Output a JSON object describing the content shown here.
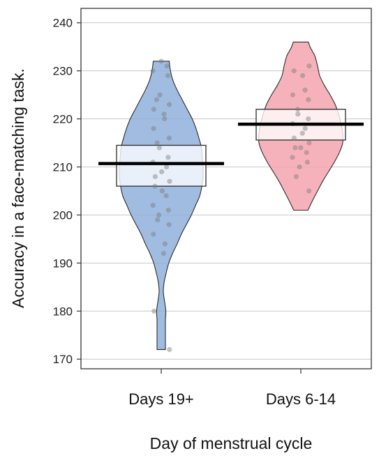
{
  "chart_data": {
    "type": "pirate",
    "xlabel": "Day of menstrual cycle",
    "ylabel": "Accuracy in a face-matching task.",
    "ylim": [
      168,
      243
    ],
    "yticks": [
      170,
      180,
      190,
      200,
      210,
      220,
      230,
      240
    ],
    "grid": true,
    "categories": [
      "Days 19+",
      "Days 6-14"
    ],
    "groups": [
      {
        "category": "Days 19+",
        "color": "#8FB0DC",
        "mean": 210.7,
        "inference_band": [
          206,
          214.5
        ],
        "min": 172,
        "max": 232,
        "density": [
          [
            172,
            0.1
          ],
          [
            174,
            0.1
          ],
          [
            176,
            0.1
          ],
          [
            178,
            0.1
          ],
          [
            180,
            0.11
          ],
          [
            182,
            0.08
          ],
          [
            184,
            0.05
          ],
          [
            186,
            0.07
          ],
          [
            188,
            0.12
          ],
          [
            190,
            0.18
          ],
          [
            192,
            0.27
          ],
          [
            194,
            0.38
          ],
          [
            196,
            0.48
          ],
          [
            198,
            0.6
          ],
          [
            200,
            0.72
          ],
          [
            202,
            0.82
          ],
          [
            204,
            0.92
          ],
          [
            206,
            0.97
          ],
          [
            208,
            1.0
          ],
          [
            210,
            1.0
          ],
          [
            212,
            0.98
          ],
          [
            214,
            0.96
          ],
          [
            216,
            0.9
          ],
          [
            218,
            0.83
          ],
          [
            220,
            0.74
          ],
          [
            222,
            0.62
          ],
          [
            224,
            0.5
          ],
          [
            226,
            0.38
          ],
          [
            228,
            0.28
          ],
          [
            230,
            0.22
          ],
          [
            232,
            0.19
          ]
        ],
        "points": [
          232,
          231,
          230,
          229,
          225,
          224,
          223,
          222,
          221,
          220,
          218,
          216,
          215,
          214,
          212,
          211,
          210,
          209,
          208,
          207,
          206,
          205,
          204,
          202,
          201,
          200,
          199,
          198,
          196,
          194,
          192,
          180,
          172
        ]
      },
      {
        "category": "Days 6-14",
        "color": "#F4A5AE",
        "mean": 218.9,
        "inference_band": [
          215.6,
          222
        ],
        "min": 201,
        "max": 236,
        "density": [
          [
            201,
            0.17
          ],
          [
            203,
            0.28
          ],
          [
            205,
            0.4
          ],
          [
            207,
            0.52
          ],
          [
            209,
            0.66
          ],
          [
            211,
            0.8
          ],
          [
            213,
            0.92
          ],
          [
            215,
            1.0
          ],
          [
            217,
            1.0
          ],
          [
            219,
            0.96
          ],
          [
            221,
            0.9
          ],
          [
            223,
            0.82
          ],
          [
            225,
            0.7
          ],
          [
            227,
            0.56
          ],
          [
            229,
            0.45
          ],
          [
            231,
            0.4
          ],
          [
            233,
            0.34
          ],
          [
            234,
            0.28
          ],
          [
            235,
            0.22
          ],
          [
            236,
            0.18
          ]
        ],
        "points": [
          231,
          230,
          229,
          226,
          225,
          224,
          222,
          221,
          220,
          219,
          218,
          217,
          216,
          215,
          214,
          214,
          213,
          212,
          211,
          210,
          208,
          205
        ]
      }
    ]
  }
}
